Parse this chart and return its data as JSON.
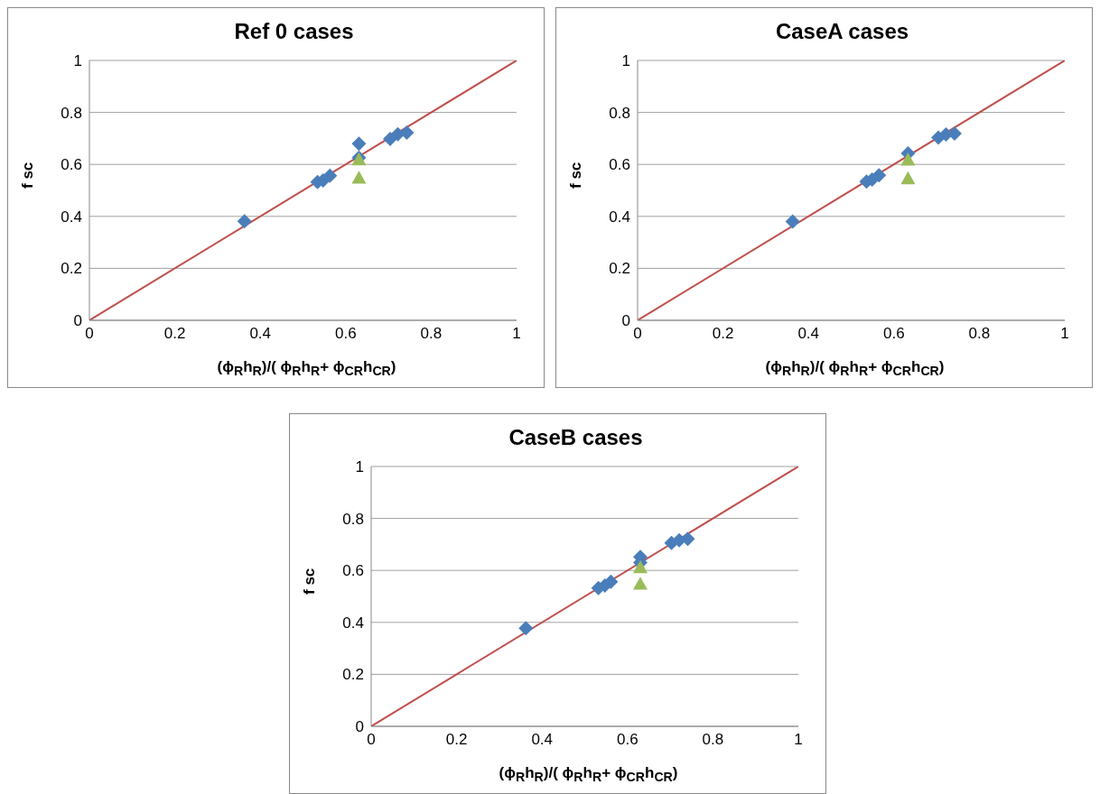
{
  "chart_data": [
    {
      "type": "scatter",
      "title": "Ref 0 cases",
      "xlabel": "(ϕ$_{R}$h$_{R}$)/( ϕ$_{R}$h$_{R}$+ ϕ$_{CR}$h$_{CR}$)",
      "ylabel": "f sc",
      "xlim": [
        0,
        1
      ],
      "ylim": [
        0,
        1
      ],
      "xticks": [
        0,
        0.2,
        0.4,
        0.6,
        0.8,
        1
      ],
      "yticks": [
        0,
        0.2,
        0.4,
        0.6,
        0.8,
        1
      ],
      "grid": "y",
      "series": [
        {
          "type": "scatter",
          "color": "#4a7ebb",
          "marker": "diamond",
          "x": [
            0.363,
            0.534,
            0.547,
            0.563,
            0.631,
            0.631,
            0.704,
            0.722,
            0.743
          ],
          "values": [
            0.381,
            0.532,
            0.538,
            0.556,
            0.68,
            0.626,
            0.698,
            0.716,
            0.722
          ]
        },
        {
          "type": "scatter",
          "color": "#9bbb59",
          "marker": "triangle",
          "x": [
            0.631,
            0.631
          ],
          "values": [
            0.619,
            0.548
          ]
        },
        {
          "type": "line",
          "color": "#c0504d",
          "marker": "none",
          "x": [
            0,
            1
          ],
          "values": [
            0,
            1
          ]
        }
      ]
    },
    {
      "type": "scatter",
      "title": "CaseA cases",
      "xlabel": "(ϕ$_{R}$h$_{R}$)/( ϕ$_{R}$h$_{R}$+ ϕ$_{CR}$h$_{CR}$)",
      "ylabel": "f sc",
      "xlim": [
        0,
        1
      ],
      "ylim": [
        0,
        1
      ],
      "xticks": [
        0,
        0.2,
        0.4,
        0.6,
        0.8,
        1
      ],
      "yticks": [
        0,
        0.2,
        0.4,
        0.6,
        0.8,
        1
      ],
      "grid": "y",
      "series": [
        {
          "type": "scatter",
          "color": "#4a7ebb",
          "marker": "diamond",
          "x": [
            0.363,
            0.536,
            0.549,
            0.565,
            0.633,
            0.704,
            0.722,
            0.742
          ],
          "values": [
            0.38,
            0.534,
            0.542,
            0.558,
            0.642,
            0.703,
            0.715,
            0.719
          ]
        },
        {
          "type": "scatter",
          "color": "#9bbb59",
          "marker": "triangle",
          "x": [
            0.633,
            0.633
          ],
          "values": [
            0.618,
            0.546
          ]
        },
        {
          "type": "line",
          "color": "#c0504d",
          "marker": "none",
          "x": [
            0,
            1
          ],
          "values": [
            0,
            1
          ]
        }
      ]
    },
    {
      "type": "scatter",
      "title": "CaseB cases",
      "xlabel": "(ϕ$_{R}$h$_{R}$)/( ϕ$_{R}$h$_{R}$+ ϕ$_{CR}$h$_{CR}$)",
      "ylabel": "f sc",
      "xlim": [
        0,
        1
      ],
      "ylim": [
        0,
        1
      ],
      "xticks": [
        0,
        0.2,
        0.4,
        0.6,
        0.8,
        1
      ],
      "yticks": [
        0,
        0.2,
        0.4,
        0.6,
        0.8,
        1
      ],
      "grid": "y",
      "series": [
        {
          "type": "scatter",
          "color": "#4a7ebb",
          "marker": "diamond",
          "x": [
            0.362,
            0.532,
            0.547,
            0.561,
            0.63,
            0.63,
            0.703,
            0.721,
            0.741
          ],
          "values": [
            0.378,
            0.532,
            0.542,
            0.556,
            0.652,
            0.63,
            0.706,
            0.716,
            0.721
          ]
        },
        {
          "type": "scatter",
          "color": "#9bbb59",
          "marker": "triangle",
          "x": [
            0.63,
            0.63
          ],
          "values": [
            0.612,
            0.548
          ]
        },
        {
          "type": "line",
          "color": "#c0504d",
          "marker": "none",
          "x": [
            0,
            1
          ],
          "values": [
            0,
            1
          ]
        }
      ]
    }
  ]
}
